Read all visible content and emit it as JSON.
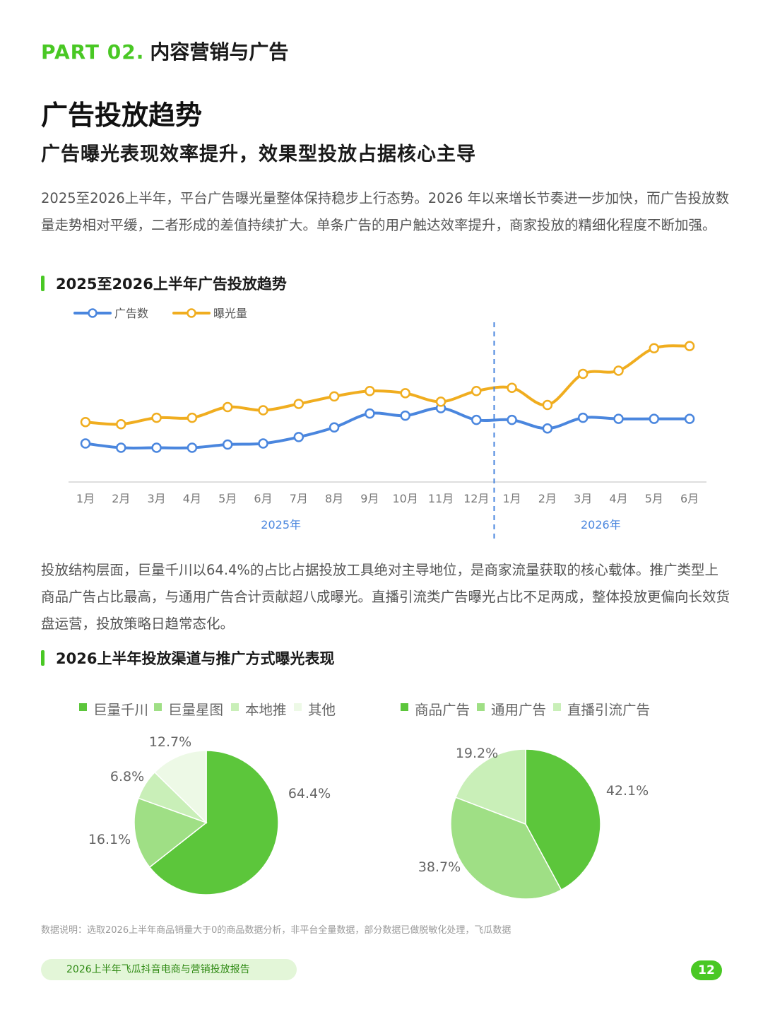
{
  "header": {
    "part_number": "PART 02.",
    "part_title": "内容营销与广告"
  },
  "title": "广告投放趋势",
  "subtitle": "广告曝光表现效率提升，效果型投放占据核心主导",
  "paragraph1": "2025至2026上半年，平台广告曝光量整体保持稳步上行态势。2026 年以来增长节奏进一步加快，而广告投放数量走势相对平缓，二者形成的差值持续扩大。单条广告的用户触达效率提升，商家投放的精细化程度不断加强。",
  "section1_title": "2025至2026上半年广告投放趋势",
  "paragraph2": "投放结构层面，巨量千川以64.4%的占比占据投放工具绝对主导地位，是商家流量获取的核心载体。推广类型上商品广告占比最高，与通用广告合计贡献超八成曝光。直播引流类广告曝光占比不足两成，整体投放更偏向长效货盘运营，投放策略日趋常态化。",
  "section2_title": "2026上半年投放渠道与推广方式曝光表现",
  "colors": {
    "accent": "#49c824",
    "blue": "#4a86de",
    "orange": "#f0ad1f"
  },
  "chart_data": [
    {
      "type": "line",
      "categories": [
        "1月",
        "2月",
        "3月",
        "4月",
        "5月",
        "6月",
        "7月",
        "8月",
        "9月",
        "10月",
        "11月",
        "12月",
        "1月",
        "2月",
        "3月",
        "4月",
        "5月",
        "6月"
      ],
      "groups": [
        {
          "label": "2025年",
          "from": 0,
          "to": 11
        },
        {
          "label": "2026年",
          "from": 12,
          "to": 17
        }
      ],
      "series": [
        {
          "name": "广告数",
          "color": "#4a86de",
          "values": [
            36,
            32,
            32,
            32,
            35,
            36,
            42,
            51,
            64,
            62,
            69,
            58,
            58,
            50,
            60,
            59,
            59,
            59
          ]
        },
        {
          "name": "曝光量",
          "color": "#f0ad1f",
          "values": [
            56,
            54,
            60,
            60,
            70,
            67,
            73,
            80,
            85,
            83,
            75,
            85,
            88,
            72,
            101,
            104,
            125,
            127
          ]
        }
      ],
      "ylim": [
        0,
        140
      ],
      "legend": "top-left",
      "grid": false
    },
    {
      "type": "pie",
      "labels": [
        "巨量千川",
        "巨量星图",
        "本地推",
        "其他"
      ],
      "values": [
        64.4,
        16.1,
        6.8,
        12.7
      ],
      "value_labels": [
        "64.4%",
        "16.1%",
        "6.8%",
        "12.7%"
      ],
      "colors": [
        "#5cc63b",
        "#9fdf85",
        "#c9efb8",
        "#edf9e6"
      ],
      "legend": "top"
    },
    {
      "type": "pie",
      "labels": [
        "商品广告",
        "通用广告",
        "直播引流广告"
      ],
      "values": [
        42.1,
        38.7,
        19.2
      ],
      "value_labels": [
        "42.1%",
        "38.7%",
        "19.2%"
      ],
      "colors": [
        "#5cc63b",
        "#9fdf85",
        "#c9efb8"
      ],
      "legend": "top"
    }
  ],
  "footnote": "数据说明：选取2026上半年商品销量大于0的商品数据分析，非平台全量数据，部分数据已做脱敏化处理，飞瓜数据",
  "footer": {
    "report_name": "2026上半年飞瓜抖音电商与营销投放报告",
    "page_number": "12"
  }
}
